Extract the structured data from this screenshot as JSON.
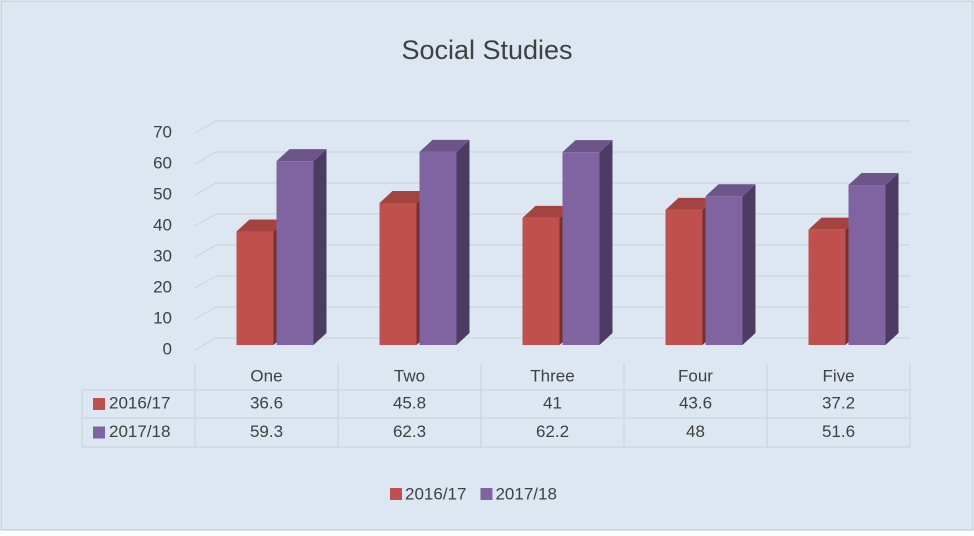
{
  "chart_data": {
    "type": "bar3d",
    "title": "Social Studies",
    "categories": [
      "One",
      "Two",
      "Three",
      "Four",
      "Five"
    ],
    "series": [
      {
        "name": "2016/17",
        "color": "#c0504d",
        "values": [
          36.6,
          45.8,
          41,
          43.6,
          37.2
        ]
      },
      {
        "name": "2017/18",
        "color": "#8064a2",
        "values": [
          59.3,
          62.3,
          62.2,
          48,
          51.6
        ]
      }
    ],
    "ylim": [
      0,
      70
    ],
    "yticks": [
      0,
      10,
      20,
      30,
      40,
      50,
      60,
      70
    ],
    "grid": true,
    "data_table": true,
    "legend": "bottom"
  }
}
